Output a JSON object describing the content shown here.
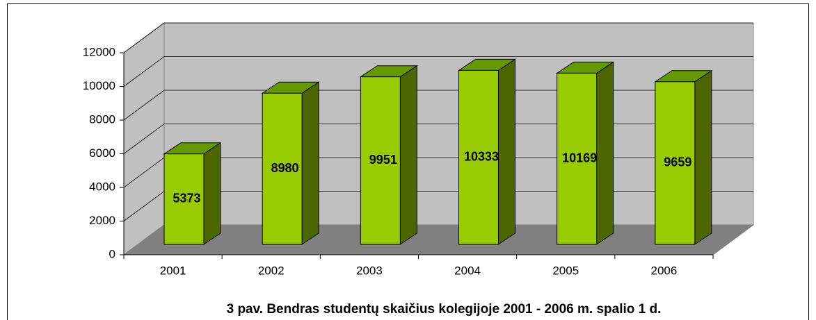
{
  "chart_data": {
    "type": "bar",
    "title": "3 pav. Bendras studentų skaičius kolegijoje 2001 - 2006 m. spalio 1 d.",
    "categories": [
      "2001",
      "2002",
      "2003",
      "2004",
      "2005",
      "2006"
    ],
    "values": [
      5373,
      8980,
      9951,
      10333,
      10169,
      9659
    ],
    "color": "#99cc00",
    "ylim": [
      0,
      12000
    ],
    "yticks": [
      0,
      2000,
      4000,
      6000,
      8000,
      10000,
      12000
    ],
    "grid": true
  }
}
